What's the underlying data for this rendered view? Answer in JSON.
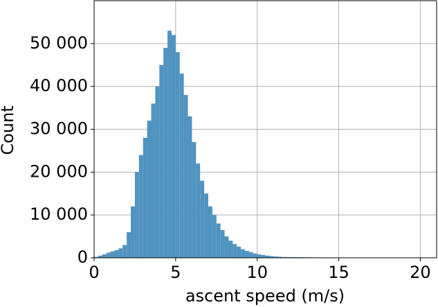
{
  "chart_data": {
    "type": "histogram",
    "x_label": "ascent speed (m/s)",
    "y_label": "Count",
    "color": "#5093c0",
    "grid": true,
    "bins": [
      0,
      0.25,
      0.5,
      0.75,
      1,
      1.25,
      1.5,
      1.75,
      2,
      2.25,
      2.5,
      2.75,
      3,
      3.25,
      3.5,
      3.75,
      4,
      4.25,
      4.5,
      4.75,
      5,
      5.25,
      5.5,
      5.75,
      6,
      6.25,
      6.5,
      6.75,
      7,
      7.25,
      7.5,
      7.75,
      8,
      8.25,
      8.5,
      8.75,
      9,
      9.25,
      9.5,
      9.75,
      10,
      10.25,
      10.5,
      10.75,
      11,
      11.25,
      11.5,
      11.75,
      12,
      12.25,
      12.5,
      12.75,
      13,
      13.25,
      13.5,
      13.75,
      14,
      14.25,
      14.5,
      14.75,
      15,
      15.25,
      15.5,
      15.75,
      16,
      16.25,
      16.5,
      16.75,
      17,
      17.25,
      17.5,
      17.75,
      18,
      18.25,
      18.5,
      18.75,
      19,
      19.25,
      19.5,
      19.75,
      20
    ],
    "values": [
      200,
      500,
      800,
      1200,
      1500,
      1800,
      2200,
      3000,
      6000,
      12000,
      20000,
      24000,
      28000,
      32000,
      36000,
      40000,
      45000,
      49000,
      53000,
      52000,
      48000,
      43000,
      38000,
      33000,
      27000,
      22000,
      18000,
      15000,
      12000,
      10000,
      8000,
      6500,
      5000,
      4000,
      3200,
      2600,
      2000,
      1600,
      1300,
      1000,
      800,
      650,
      500,
      400,
      300,
      250,
      200,
      180,
      160,
      150,
      140,
      130,
      120,
      110,
      100,
      100,
      95,
      90,
      85,
      80,
      80,
      75,
      70,
      70,
      65,
      60,
      60,
      55,
      55,
      50,
      50,
      50,
      45,
      45,
      40,
      40,
      35,
      35,
      30,
      30
    ],
    "xlim": [
      0,
      21
    ],
    "xticks": [
      0,
      5,
      10,
      15,
      20
    ],
    "ylim": [
      0,
      60000
    ],
    "yticks": [
      0,
      {
        "value": 10000,
        "label": "10 000"
      },
      {
        "value": 20000,
        "label": "20 000"
      },
      {
        "value": 30000,
        "label": "30 000"
      },
      {
        "value": 40000,
        "label": "40 000"
      },
      {
        "value": 50000,
        "label": "50 000"
      }
    ]
  }
}
